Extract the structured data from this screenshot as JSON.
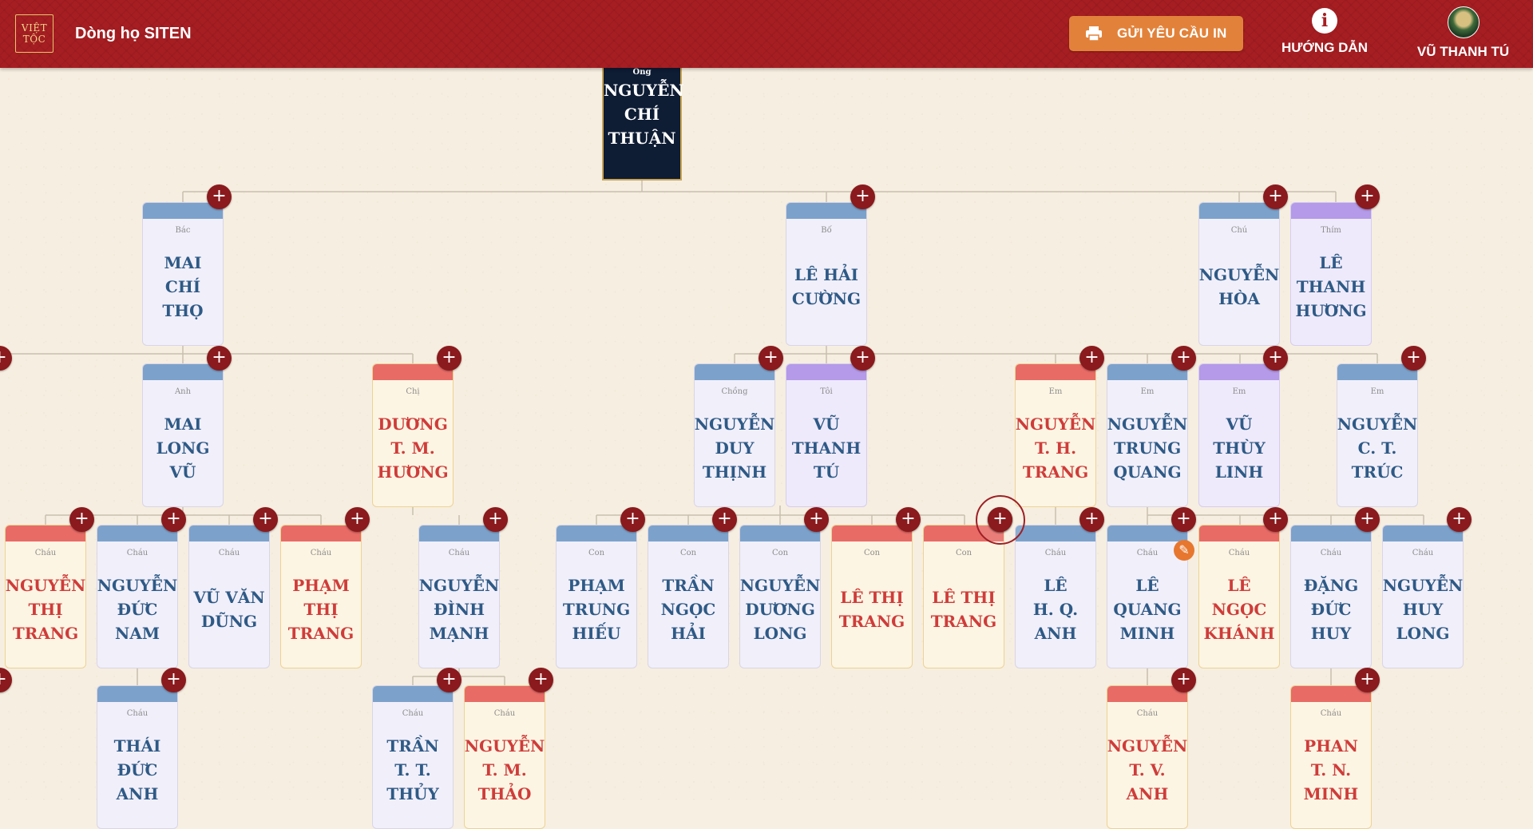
{
  "header": {
    "logo": [
      "VIỆT",
      "TỘC"
    ],
    "title": "Dòng họ SITEN",
    "print_button": "GỬI YÊU CẦU IN",
    "guide_label": "HƯỚNG DẪN",
    "user_name": "VŨ THANH TÚ"
  },
  "colors": {
    "header": "#a61e22",
    "print_button": "#e2823a",
    "male_band": "#7ca2cb",
    "female_band": "#e86b66",
    "self_band": "#b49ae8",
    "root_card": "#0e1c34",
    "plus_button": "#8a1a1d"
  },
  "tree": {
    "root": {
      "relation": "Ông",
      "name": [
        "NGUYỄN",
        "CHÍ",
        "THUẬN"
      ]
    },
    "cards": [
      {
        "id": "c1",
        "relation": "Bác",
        "name": [
          "MAI CHÍ",
          "THỌ"
        ],
        "gender": "m"
      },
      {
        "id": "c2",
        "relation": "Bố",
        "name": [
          "LÊ HẢI",
          "CƯỜNG"
        ],
        "gender": "m"
      },
      {
        "id": "c3",
        "relation": "Chú",
        "name": [
          "NGUYỄN",
          "HÒA"
        ],
        "gender": "m"
      },
      {
        "id": "c4",
        "relation": "Thím",
        "name": [
          "LÊ",
          "THANH",
          "HƯƠNG"
        ],
        "gender": "p"
      },
      {
        "id": "c5",
        "relation": "Anh",
        "name": [
          "MAI",
          "LONG VŨ"
        ],
        "gender": "m"
      },
      {
        "id": "c6",
        "relation": "Chị",
        "name": [
          "DƯƠNG",
          "T. M.",
          "HƯƠNG"
        ],
        "gender": "f"
      },
      {
        "id": "c7",
        "relation": "Chồng",
        "name": [
          "NGUYỄN",
          "DUY",
          "THỊNH"
        ],
        "gender": "m"
      },
      {
        "id": "c8",
        "relation": "Tôi",
        "name": [
          "VŨ",
          "THANH",
          "TÚ"
        ],
        "gender": "p"
      },
      {
        "id": "c9",
        "relation": "Em",
        "name": [
          "NGUYỄN",
          "T. H.",
          "TRANG"
        ],
        "gender": "f"
      },
      {
        "id": "c10",
        "relation": "Em",
        "name": [
          "NGUYỄN",
          "TRUNG",
          "QUANG"
        ],
        "gender": "m"
      },
      {
        "id": "c11",
        "relation": "Em",
        "name": [
          "VŨ THÙY",
          "LINH"
        ],
        "gender": "p"
      },
      {
        "id": "c12",
        "relation": "Em",
        "name": [
          "NGUYỄN",
          "C. T.",
          "TRÚC"
        ],
        "gender": "m"
      },
      {
        "id": "c13",
        "relation": "Cháu",
        "name": [
          "NGUYỄN",
          "THỊ",
          "TRANG"
        ],
        "gender": "f"
      },
      {
        "id": "c14",
        "relation": "Cháu",
        "name": [
          "NGUYỄN",
          "ĐỨC NAM"
        ],
        "gender": "m"
      },
      {
        "id": "c15",
        "relation": "Cháu",
        "name": [
          "VŨ VĂN",
          "DŨNG"
        ],
        "gender": "m"
      },
      {
        "id": "c16",
        "relation": "Cháu",
        "name": [
          "PHẠM",
          "THỊ",
          "TRANG"
        ],
        "gender": "f"
      },
      {
        "id": "c17",
        "relation": "Cháu",
        "name": [
          "NGUYỄN",
          "ĐÌNH",
          "MẠNH"
        ],
        "gender": "m"
      },
      {
        "id": "c18",
        "relation": "Con",
        "name": [
          "PHẠM",
          "TRUNG",
          "HIẾU"
        ],
        "gender": "m"
      },
      {
        "id": "c19",
        "relation": "Con",
        "name": [
          "TRẦN",
          "NGỌC",
          "HẢI"
        ],
        "gender": "m"
      },
      {
        "id": "c20",
        "relation": "Con",
        "name": [
          "NGUYỄN",
          "DƯƠNG",
          "LONG"
        ],
        "gender": "m"
      },
      {
        "id": "c21",
        "relation": "Con",
        "name": [
          "LÊ THỊ",
          "TRANG"
        ],
        "gender": "f"
      },
      {
        "id": "c22",
        "relation": "Con",
        "name": [
          "LÊ THỊ",
          "TRANG"
        ],
        "gender": "f"
      },
      {
        "id": "c23",
        "relation": "Cháu",
        "name": [
          "LÊ",
          "H. Q.",
          "ANH"
        ],
        "gender": "m"
      },
      {
        "id": "c24",
        "relation": "Cháu",
        "name": [
          "LÊ",
          "QUANG",
          "MINH"
        ],
        "gender": "m"
      },
      {
        "id": "c25",
        "relation": "Cháu",
        "name": [
          "LÊ NGỌC",
          "KHÁNH"
        ],
        "gender": "f"
      },
      {
        "id": "c26",
        "relation": "Cháu",
        "name": [
          "ĐẶNG",
          "ĐỨC HUY"
        ],
        "gender": "m"
      },
      {
        "id": "c27",
        "relation": "Cháu",
        "name": [
          "NGUYỄN",
          "HUY",
          "LONG"
        ],
        "gender": "m"
      },
      {
        "id": "c28",
        "relation": "Cháu",
        "name": [
          "THÁI",
          "ĐỨC ANH"
        ],
        "gender": "m"
      },
      {
        "id": "c29",
        "relation": "Cháu",
        "name": [
          "TRẦN",
          "T. T.",
          "THỦY"
        ],
        "gender": "m"
      },
      {
        "id": "c30",
        "relation": "Cháu",
        "name": [
          "NGUYỄN",
          "T. M.",
          "THẢO"
        ],
        "gender": "f"
      },
      {
        "id": "c31",
        "relation": "Cháu",
        "name": [
          "NGUYỄN",
          "T. V.",
          "ANH"
        ],
        "gender": "f"
      },
      {
        "id": "c32",
        "relation": "Cháu",
        "name": [
          "PHAN",
          "T. N.",
          "MINH"
        ],
        "gender": "f"
      }
    ]
  }
}
